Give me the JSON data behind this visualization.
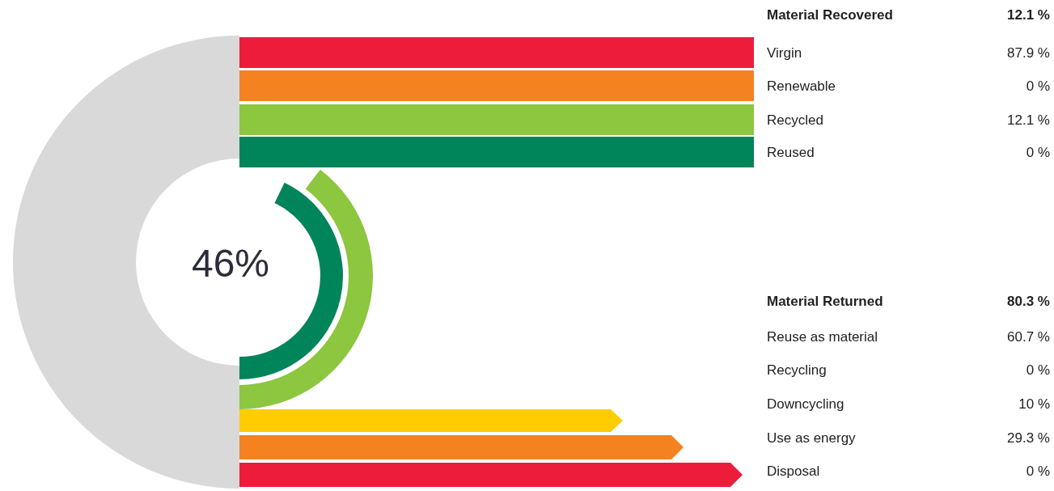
{
  "chart_data": [
    {
      "type": "other",
      "color": "#d9d9d9",
      "annotations": [
        "46%"
      ]
    },
    {
      "type": "other",
      "title": "Material Recovered",
      "subtitle": "12.1 %",
      "categories": [
        "Virgin",
        "Renewable",
        "Recycled",
        "Reused"
      ],
      "values": [
        87.9,
        0,
        12.1,
        0
      ],
      "value_labels": [
        "87.9 %",
        "0 %",
        "12.1 %",
        "0 %"
      ],
      "colors": [
        "#ed1c3a",
        "#f58220",
        "#8dc63f",
        "#00845a"
      ]
    },
    {
      "type": "other",
      "title": "Material Returned",
      "subtitle": "80.3 %",
      "categories": [
        "Reuse as material",
        "Recycling",
        "Downcycling",
        "Use as energy",
        "Disposal"
      ],
      "values": [
        60.7,
        0,
        10,
        29.3,
        0
      ],
      "value_labels": [
        "60.7 %",
        "0 %",
        "10 %",
        "29.3 %",
        "0 %"
      ],
      "colors": [
        "#00845a",
        "#8dc63f",
        "#ffcc00",
        "#f58220",
        "#ed1c3a"
      ]
    }
  ]
}
